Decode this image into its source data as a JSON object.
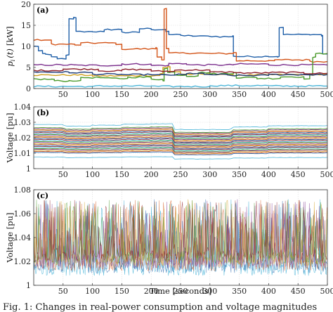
{
  "chart_data": [
    {
      "type": "line",
      "panel": "(a)",
      "ylabel": "p_i (t) [kW]",
      "ylabel_parts": {
        "main": "p",
        "sub": "i",
        "rest": "(t)",
        "unit": "[kW]"
      },
      "xlim": [
        0,
        500
      ],
      "ylim": [
        0,
        20
      ],
      "xticks": [
        "50",
        "100",
        "150",
        "200",
        "250",
        "300",
        "350",
        "400",
        "450",
        "500"
      ],
      "yticks": [
        "0",
        "5",
        "10",
        "15",
        "20"
      ],
      "grid": true,
      "series": [
        {
          "color": "#1f5fa8",
          "points": [
            [
              0,
              10
            ],
            [
              8,
              9
            ],
            [
              15,
              8.3
            ],
            [
              20,
              8
            ],
            [
              30,
              7.5
            ],
            [
              40,
              7
            ],
            [
              55,
              8
            ],
            [
              60,
              16.5
            ],
            [
              68,
              16.8
            ],
            [
              72,
              13.5
            ],
            [
              100,
              13.5
            ],
            [
              120,
              14
            ],
            [
              150,
              13.3
            ],
            [
              180,
              14.2
            ],
            [
              200,
              14
            ],
            [
              225,
              13.6
            ],
            [
              230,
              12.8
            ],
            [
              250,
              12.5
            ],
            [
              270,
              12.5
            ],
            [
              290,
              12.4
            ],
            [
              310,
              12.3
            ],
            [
              339,
              12.5
            ],
            [
              340,
              7.6
            ],
            [
              400,
              7.6
            ],
            [
              415,
              7.6
            ],
            [
              418,
              14.5
            ],
            [
              425,
              12.8
            ],
            [
              470,
              12.8
            ],
            [
              490,
              12.6
            ],
            [
              492,
              8.2
            ],
            [
              500,
              8.1
            ]
          ]
        },
        {
          "color": "#d35418",
          "points": [
            [
              0,
              11.5
            ],
            [
              25,
              11.5
            ],
            [
              30,
              10.5
            ],
            [
              70,
              10.3
            ],
            [
              80,
              10.8
            ],
            [
              140,
              10.5
            ],
            [
              150,
              9.4
            ],
            [
              208,
              9.6
            ],
            [
              210,
              7.5
            ],
            [
              218,
              6.8
            ],
            [
              222,
              19
            ],
            [
              226,
              9.5
            ],
            [
              230,
              8.4
            ],
            [
              290,
              8.3
            ],
            [
              340,
              8.5
            ],
            [
              345,
              6.6
            ],
            [
              400,
              6.6
            ],
            [
              410,
              6.8
            ],
            [
              470,
              6.4
            ],
            [
              500,
              6.5
            ]
          ]
        },
        {
          "color": "#d0a020",
          "points": [
            [
              0,
              3.2
            ],
            [
              100,
              3.0
            ],
            [
              180,
              3.1
            ],
            [
              215,
              3.6
            ],
            [
              220,
              5.0
            ],
            [
              228,
              5.2
            ],
            [
              232,
              4.0
            ],
            [
              250,
              3.4
            ],
            [
              330,
              3.2
            ],
            [
              400,
              3.3
            ],
            [
              500,
              3.1
            ]
          ]
        },
        {
          "color": "#7a2e8c",
          "points": [
            [
              0,
              5.6
            ],
            [
              70,
              5.5
            ],
            [
              150,
              5.8
            ],
            [
              200,
              5.5
            ],
            [
              230,
              5.9
            ],
            [
              260,
              5.6
            ],
            [
              340,
              5.8
            ],
            [
              400,
              5.6
            ],
            [
              500,
              5.5
            ]
          ]
        },
        {
          "color": "#4a9a2a",
          "points": [
            [
              0,
              2.2
            ],
            [
              30,
              2.2
            ],
            [
              35,
              1.8
            ],
            [
              60,
              1.9
            ],
            [
              80,
              2.6
            ],
            [
              120,
              2.4
            ],
            [
              160,
              2.7
            ],
            [
              200,
              2.2
            ],
            [
              220,
              1.8
            ],
            [
              222,
              4.8
            ],
            [
              228,
              3.8
            ],
            [
              232,
              3.9
            ],
            [
              240,
              3.2
            ],
            [
              260,
              3.0
            ],
            [
              280,
              3.8
            ],
            [
              300,
              3.5
            ],
            [
              340,
              3.8
            ],
            [
              345,
              2.6
            ],
            [
              380,
              2.4
            ],
            [
              420,
              2.8
            ],
            [
              460,
              2.3
            ],
            [
              470,
              3.4
            ],
            [
              475,
              7.5
            ],
            [
              480,
              8.3
            ],
            [
              500,
              8.2
            ]
          ]
        },
        {
          "color": "#4bb5d8",
          "points": [
            [
              0,
              0.5
            ],
            [
              100,
              0.6
            ],
            [
              200,
              0.5
            ],
            [
              300,
              0.7
            ],
            [
              400,
              0.6
            ],
            [
              500,
              0.6
            ]
          ]
        },
        {
          "color": "#8c1e2a",
          "points": [
            [
              0,
              4.3
            ],
            [
              50,
              4.6
            ],
            [
              110,
              4.2
            ],
            [
              150,
              4.5
            ],
            [
              200,
              4.1
            ],
            [
              240,
              4.4
            ],
            [
              300,
              3.9
            ],
            [
              340,
              3.7
            ],
            [
              400,
              3.8
            ],
            [
              460,
              3.6
            ],
            [
              500,
              3.9
            ]
          ]
        },
        {
          "color": "#1f3d7a",
          "points": [
            [
              0,
              3.9
            ],
            [
              60,
              3.8
            ],
            [
              100,
              3.4
            ],
            [
              150,
              3.3
            ],
            [
              200,
              3.2
            ],
            [
              240,
              3.3
            ],
            [
              260,
              3.6
            ],
            [
              290,
              3.3
            ],
            [
              330,
              3.1
            ],
            [
              400,
              3.3
            ],
            [
              500,
              3.4
            ]
          ]
        }
      ]
    },
    {
      "type": "line",
      "panel": "(b)",
      "ylabel": "Voltage [pu]",
      "xlim": [
        0,
        500
      ],
      "ylim": [
        1.0,
        1.04
      ],
      "xticks": [
        "50",
        "100",
        "150",
        "200",
        "250",
        "300",
        "350",
        "400",
        "450",
        "500"
      ],
      "yticks": [
        "1",
        "1.01",
        "1.02",
        "1.03",
        "1.04"
      ],
      "grid": true,
      "series_band": {
        "count": 26,
        "top": 1.0265,
        "bottom": 1.0105,
        "outlier_low": 1.0075,
        "outlier_high": 1.0285
      },
      "step_profile": [
        [
          0,
          0.0
        ],
        [
          50,
          0.0
        ],
        [
          55,
          -0.0008
        ],
        [
          100,
          -0.0003
        ],
        [
          150,
          0.0002
        ],
        [
          200,
          0.0004
        ],
        [
          237,
          0.0004
        ],
        [
          240,
          -0.0025
        ],
        [
          335,
          -0.0025
        ],
        [
          340,
          -0.0012
        ],
        [
          395,
          -0.0015
        ],
        [
          400,
          -0.0006
        ],
        [
          450,
          -0.0006
        ],
        [
          500,
          -0.0004
        ]
      ],
      "colors": [
        "#1f5fa8",
        "#d35418",
        "#d0a020",
        "#7a2e8c",
        "#4a9a2a",
        "#4bb5d8",
        "#8c1e2a"
      ]
    },
    {
      "type": "line",
      "panel": "(c)",
      "ylabel": "Voltage [pu]",
      "xlabel": "Time [seconds]",
      "xlim": [
        0,
        500
      ],
      "ylim": [
        1.0,
        1.08
      ],
      "xticks": [
        "50",
        "100",
        "150",
        "200",
        "250",
        "300",
        "350",
        "400",
        "450",
        "500"
      ],
      "yticks": [
        "1",
        "1.02",
        "1.04",
        "1.06",
        "1.08"
      ],
      "grid": true,
      "series_band": {
        "count": 7,
        "base_low": 1.008,
        "base_high": 1.03,
        "peak_max": 1.072
      },
      "colors": [
        "#4bb5d8",
        "#1f5fa8",
        "#d35418",
        "#7a2e8c",
        "#d0a020",
        "#4a9a2a",
        "#8c1e2a"
      ]
    }
  ],
  "caption": "Fig. 1: Changes in real-power consumption and voltage magnitudes"
}
